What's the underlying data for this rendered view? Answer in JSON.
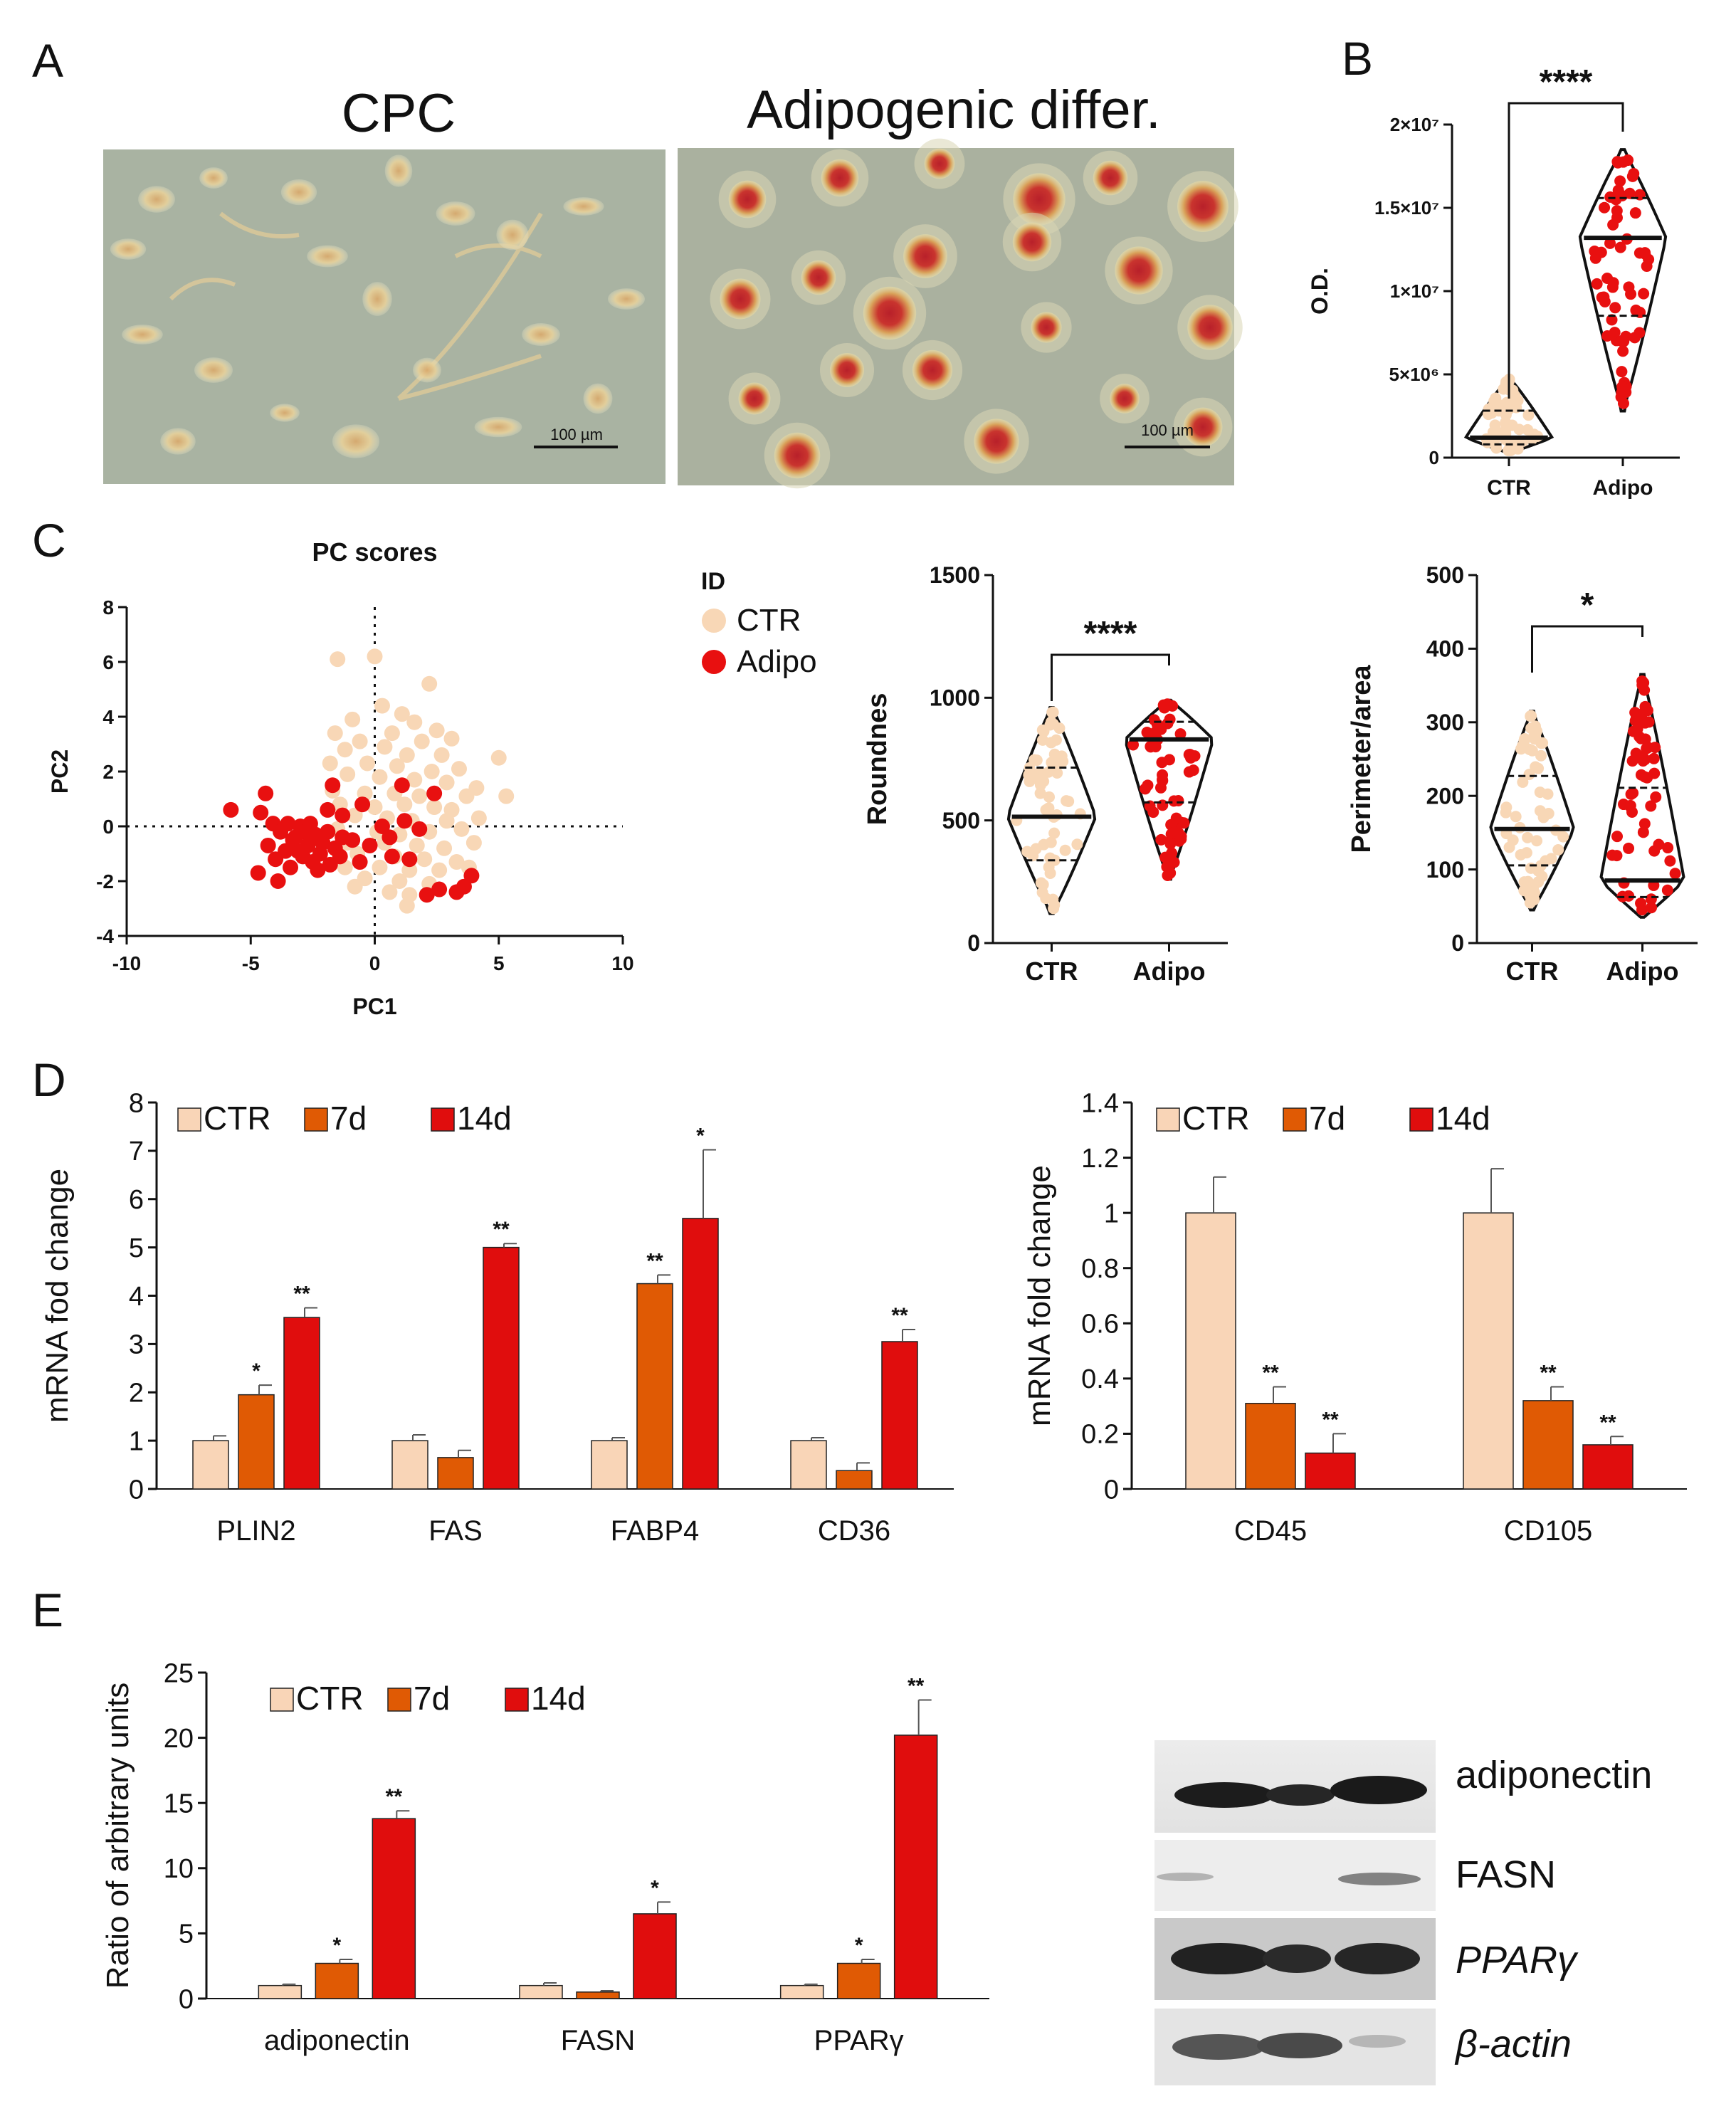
{
  "colors": {
    "ctr": "#f9d5b7",
    "d7": "#e05a04",
    "d14": "#e00d0d",
    "adipo": "#e81010",
    "ctr_dot": "#f8d7b6"
  },
  "panels": {
    "A": {
      "letter": "A",
      "left_title": "CPC",
      "right_title": "Adipogenic differ.",
      "scale_label_left": "100 µm",
      "scale_label_right": "100 µm"
    },
    "B": {
      "letter": "B"
    },
    "C": {
      "letter": "C",
      "legend_title": "ID",
      "legend": [
        "CTR",
        "Adipo"
      ]
    },
    "D": {
      "letter": "D"
    },
    "E": {
      "letter": "E",
      "blot_labels": [
        "adiponectin",
        "FASN",
        "PPARγ",
        "β-actin"
      ]
    }
  },
  "chart_data": [
    {
      "id": "B",
      "type": "violin",
      "title": "",
      "xlabel": "",
      "ylabel": "O.D.",
      "categories": [
        "CTR",
        "Adipo"
      ],
      "ylim": [
        0,
        20000000
      ],
      "yticks": [
        "0",
        "5×10⁶",
        "1×10⁷",
        "1.5×10⁷",
        "2×10⁷"
      ],
      "medians": [
        1200000,
        13200000
      ],
      "ranges": [
        [
          300000,
          4800000
        ],
        [
          2800000,
          18500000
        ]
      ],
      "significance": "****"
    },
    {
      "id": "C-pca",
      "type": "scatter",
      "title": "PC scores",
      "xlabel": "PC1",
      "ylabel": "PC2",
      "xlim": [
        -10,
        10
      ],
      "ylim": [
        -4,
        8
      ],
      "xticks": [
        "-10",
        "-5",
        "0",
        "5",
        "10"
      ],
      "yticks": [
        "-4",
        "-2",
        "0",
        "2",
        "4",
        "6",
        "8"
      ],
      "series": [
        {
          "name": "CTR",
          "points": [
            [
              -1.5,
              6.1
            ],
            [
              0,
              6.2
            ],
            [
              2.2,
              5.2
            ],
            [
              0.3,
              4.4
            ],
            [
              1.1,
              4.1
            ],
            [
              -0.9,
              3.9
            ],
            [
              1.6,
              3.8
            ],
            [
              -1.6,
              3.4
            ],
            [
              0.7,
              3.4
            ],
            [
              2.5,
              3.5
            ],
            [
              -0.6,
              3.1
            ],
            [
              1.9,
              3.1
            ],
            [
              3.1,
              3.2
            ],
            [
              -1.2,
              2.8
            ],
            [
              0.4,
              2.9
            ],
            [
              1.3,
              2.6
            ],
            [
              2.7,
              2.6
            ],
            [
              5,
              2.5
            ],
            [
              -1.8,
              2.3
            ],
            [
              -0.3,
              2.3
            ],
            [
              0.9,
              2.2
            ],
            [
              2.3,
              2
            ],
            [
              3.4,
              2.1
            ],
            [
              -1.1,
              1.9
            ],
            [
              0.2,
              1.8
            ],
            [
              1.6,
              1.7
            ],
            [
              2.9,
              1.6
            ],
            [
              4.1,
              1.4
            ],
            [
              -1.7,
              1.3
            ],
            [
              -0.4,
              1.2
            ],
            [
              0.8,
              1.2
            ],
            [
              1.8,
              1.1
            ],
            [
              3.7,
              1.1
            ],
            [
              5.3,
              1.1
            ],
            [
              -1.4,
              0.8
            ],
            [
              0,
              0.7
            ],
            [
              1.2,
              0.8
            ],
            [
              2.4,
              0.7
            ],
            [
              3.1,
              0.6
            ],
            [
              -0.8,
              0.4
            ],
            [
              0.5,
              0.3
            ],
            [
              1.5,
              0.2
            ],
            [
              2.9,
              0.2
            ],
            [
              4.2,
              0.3
            ],
            [
              -1.5,
              -0.1
            ],
            [
              0.1,
              -0.2
            ],
            [
              1,
              -0.3
            ],
            [
              2.2,
              -0.2
            ],
            [
              3.5,
              -0.1
            ],
            [
              -1.1,
              -0.6
            ],
            [
              0.4,
              -0.6
            ],
            [
              1.7,
              -0.7
            ],
            [
              2.8,
              -0.8
            ],
            [
              4,
              -0.6
            ],
            [
              -0.7,
              -1
            ],
            [
              0.8,
              -1.1
            ],
            [
              2,
              -1.2
            ],
            [
              3.3,
              -1.3
            ],
            [
              -1.2,
              -1.5
            ],
            [
              0.2,
              -1.5
            ],
            [
              1.4,
              -1.6
            ],
            [
              2.6,
              -1.6
            ],
            [
              3.8,
              -1.5
            ],
            [
              -0.4,
              -1.9
            ],
            [
              1,
              -2
            ],
            [
              2.2,
              -2.1
            ],
            [
              -0.8,
              -2.2
            ],
            [
              0.6,
              -2.4
            ],
            [
              1.4,
              -2.5
            ],
            [
              1.3,
              -2.9
            ]
          ]
        },
        {
          "name": "Adipo",
          "points": [
            [
              -5.8,
              0.6
            ],
            [
              -4.4,
              1.2
            ],
            [
              -4.6,
              0.5
            ],
            [
              -1.7,
              1.5
            ],
            [
              -4.1,
              0.1
            ],
            [
              -3.8,
              -0.2
            ],
            [
              -3.5,
              0.1
            ],
            [
              -3.2,
              -0.4
            ],
            [
              -3,
              0
            ],
            [
              -2.8,
              -0.2
            ],
            [
              -2.6,
              0.1
            ],
            [
              -2.4,
              -0.3
            ],
            [
              -4.3,
              -0.7
            ],
            [
              -3.6,
              -0.9
            ],
            [
              -3.3,
              -0.5
            ],
            [
              -2.1,
              -0.6
            ],
            [
              -1.9,
              -0.2
            ],
            [
              -1.6,
              -0.8
            ],
            [
              -1.3,
              -0.4
            ],
            [
              -4,
              -1.2
            ],
            [
              -3.4,
              -1.5
            ],
            [
              -2.9,
              -1.1
            ],
            [
              -2.5,
              -1.3
            ],
            [
              -2.2,
              -1
            ],
            [
              -1.8,
              -1.4
            ],
            [
              -1.4,
              -1.1
            ],
            [
              -0.9,
              -0.5
            ],
            [
              -4.7,
              -1.7
            ],
            [
              -3.9,
              -2
            ],
            [
              -2.3,
              -1.6
            ],
            [
              -0.6,
              -1.3
            ],
            [
              -0.2,
              -0.7
            ],
            [
              0.3,
              0
            ],
            [
              0.6,
              -0.4
            ],
            [
              1.2,
              0.2
            ],
            [
              1.8,
              -0.1
            ],
            [
              -1.9,
              0.6
            ],
            [
              -1.3,
              0.4
            ],
            [
              -0.5,
              0.8
            ],
            [
              1.1,
              1.5
            ],
            [
              2.4,
              1.2
            ],
            [
              0.7,
              -1.1
            ],
            [
              1.4,
              -1.2
            ],
            [
              2.6,
              -2.3
            ],
            [
              2.1,
              -2.5
            ],
            [
              3.3,
              -2.4
            ],
            [
              3.6,
              -2.2
            ],
            [
              3.9,
              -1.8
            ],
            [
              -2.7,
              -0.7
            ],
            [
              -3.1,
              -0.9
            ]
          ]
        }
      ]
    },
    {
      "id": "C-round",
      "type": "violin",
      "xlabel": "",
      "ylabel": "Roundnes",
      "categories": [
        "CTR",
        "Adipo"
      ],
      "ylim": [
        0,
        1500
      ],
      "yticks": [
        "0",
        "500",
        "1000",
        "1500"
      ],
      "medians": [
        515,
        830
      ],
      "ranges": [
        [
          120,
          960
        ],
        [
          260,
          990
        ]
      ],
      "significance": "****"
    },
    {
      "id": "C-perim",
      "type": "violin",
      "xlabel": "",
      "ylabel": "Perimeter/area",
      "categories": [
        "CTR",
        "Adipo"
      ],
      "ylim": [
        0,
        500
      ],
      "yticks": [
        "0",
        "100",
        "200",
        "300",
        "400",
        "500"
      ],
      "medians": [
        155,
        85
      ],
      "ranges": [
        [
          45,
          315
        ],
        [
          35,
          365
        ]
      ],
      "significance": "*"
    },
    {
      "id": "D-left",
      "type": "bar",
      "ylabel": "mRNA fod change",
      "categories": [
        "PLIN2",
        "FAS",
        "FABP4",
        "CD36"
      ],
      "ylim": [
        0,
        8
      ],
      "yticks": [
        "0",
        "1",
        "2",
        "3",
        "4",
        "5",
        "6",
        "7",
        "8"
      ],
      "series": [
        {
          "name": "CTR",
          "values": [
            1,
            1,
            1,
            1
          ],
          "errors": [
            0.1,
            0.12,
            0.06,
            0.06
          ],
          "sig": [
            "",
            "",
            "",
            ""
          ]
        },
        {
          "name": "7d",
          "values": [
            1.95,
            0.65,
            4.25,
            0.38
          ],
          "errors": [
            0.2,
            0.15,
            0.18,
            0.16
          ],
          "sig": [
            "*",
            "",
            "**",
            ""
          ]
        },
        {
          "name": "14d",
          "values": [
            3.55,
            5,
            5.6,
            3.05
          ],
          "errors": [
            0.2,
            0.08,
            1.42,
            0.25
          ],
          "sig": [
            "**",
            "**",
            "*",
            "**"
          ]
        }
      ]
    },
    {
      "id": "D-right",
      "type": "bar",
      "ylabel": "mRNA fold change",
      "categories": [
        "CD45",
        "CD105"
      ],
      "ylim": [
        0,
        1.4
      ],
      "yticks": [
        "0",
        "0.2",
        "0.4",
        "0.6",
        "0.8",
        "1",
        "1.2",
        "1.4"
      ],
      "series": [
        {
          "name": "CTR",
          "values": [
            1,
            1
          ],
          "errors": [
            0.13,
            0.16
          ],
          "sig": [
            "",
            ""
          ]
        },
        {
          "name": "7d",
          "values": [
            0.31,
            0.32
          ],
          "errors": [
            0.06,
            0.05
          ],
          "sig": [
            "**",
            "**"
          ]
        },
        {
          "name": "14d",
          "values": [
            0.13,
            0.16
          ],
          "errors": [
            0.07,
            0.03
          ],
          "sig": [
            "**",
            "**"
          ]
        }
      ]
    },
    {
      "id": "E",
      "type": "bar",
      "ylabel": "Ratio of arbitrary units",
      "categories": [
        "adiponectin",
        "FASN",
        "PPARγ"
      ],
      "ylim": [
        0,
        25
      ],
      "yticks": [
        "0",
        "5",
        "10",
        "15",
        "20",
        "25"
      ],
      "series": [
        {
          "name": "CTR",
          "values": [
            1,
            1,
            1
          ],
          "errors": [
            0.1,
            0.2,
            0.1
          ],
          "sig": [
            "",
            "",
            ""
          ]
        },
        {
          "name": "7d",
          "values": [
            2.7,
            0.5,
            2.7
          ],
          "errors": [
            0.3,
            0.1,
            0.3
          ],
          "sig": [
            "*",
            "",
            "*"
          ]
        },
        {
          "name": "14d",
          "values": [
            13.8,
            6.5,
            20.2
          ],
          "errors": [
            0.6,
            0.9,
            2.7
          ],
          "sig": [
            "**",
            "*",
            "**"
          ]
        }
      ]
    }
  ]
}
